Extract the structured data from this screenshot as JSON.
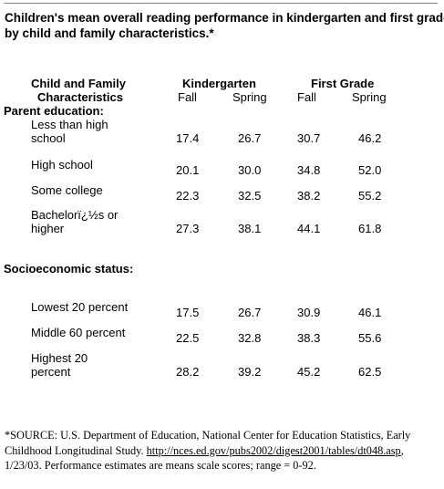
{
  "title": {
    "line1": "Children's mean overall reading performance in kindergarten and first grade,",
    "line2": "by child and family characteristics.*"
  },
  "header": {
    "col_title_line1": "Child and Family",
    "col_title_line2": "Characteristics",
    "kindergarten": "Kindergarten",
    "first_grade": "First Grade",
    "fall": "Fall",
    "spring": "Spring"
  },
  "sections": {
    "parent_education": "Parent education:",
    "ses": "Socioeconomic status:"
  },
  "rows": [
    {
      "label1": "Less than high",
      "label2": "school",
      "k_fall": "17.4",
      "k_spring": "26.7",
      "g1_fall": "30.7",
      "g1_spring": "46.2"
    },
    {
      "label1": "High school",
      "label2": "",
      "k_fall": "20.1",
      "k_spring": "30.0",
      "g1_fall": "34.8",
      "g1_spring": "52.0"
    },
    {
      "label1": "Some college",
      "label2": "",
      "k_fall": "22.3",
      "k_spring": "32.5",
      "g1_fall": "38.2",
      "g1_spring": "55.2"
    },
    {
      "label1": "Bachelorï¿½s or",
      "label2": "higher",
      "k_fall": "27.3",
      "k_spring": "38.1",
      "g1_fall": "44.1",
      "g1_spring": "61.8"
    },
    {
      "label1": "Lowest 20 percent",
      "label2": "",
      "k_fall": "17.5",
      "k_spring": "26.7",
      "g1_fall": "30.9",
      "g1_spring": "46.1"
    },
    {
      "label1": "Middle 60 percent",
      "label2": "",
      "k_fall": "22.5",
      "k_spring": "32.8",
      "g1_fall": "38.3",
      "g1_spring": "55.6"
    },
    {
      "label1": "Highest 20",
      "label2": "percent",
      "k_fall": "28.2",
      "k_spring": "39.2",
      "g1_fall": "45.2",
      "g1_spring": "62.5"
    }
  ],
  "footnote": {
    "text1": "*SOURCE: U.S. Department of Education, National Center for Education Statistics, Early Childhood Longitudinal Study. ",
    "link": "http://nces.ed.gov/pubs2002/digest2001/tables/dt048.asp",
    "text2": ", 1/23/03. Performance estimates are means scale scores; range = 0-92."
  }
}
